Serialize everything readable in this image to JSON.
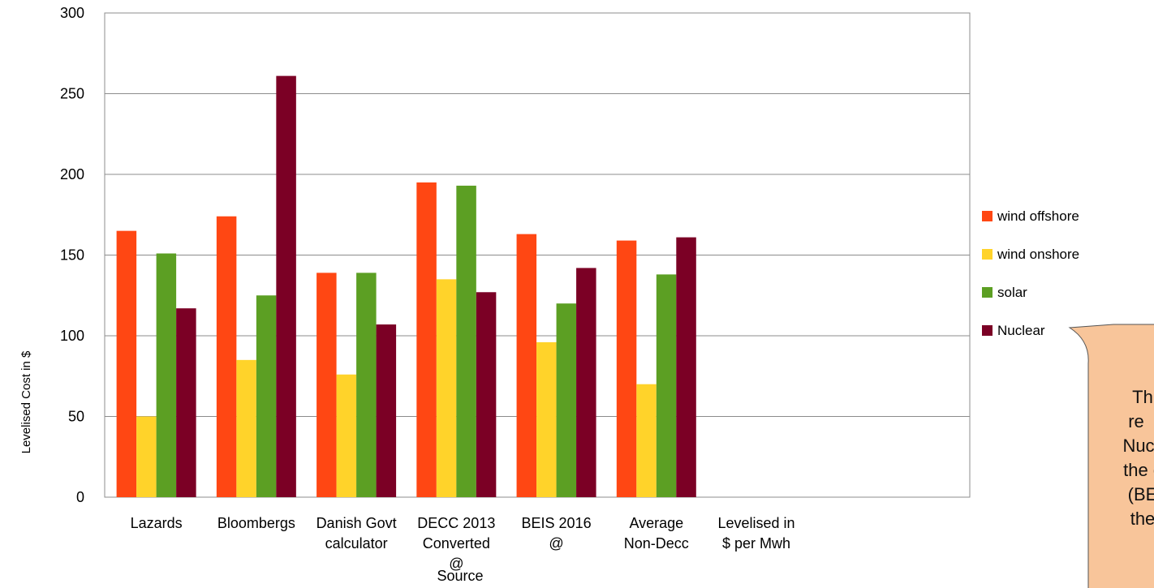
{
  "chart_data": {
    "type": "bar",
    "title": "",
    "ylabel": "Levelised Cost in $",
    "xlabel": "Source",
    "ylim": [
      0,
      300
    ],
    "yticks": [
      0,
      50,
      100,
      150,
      200,
      250,
      300
    ],
    "grid": true,
    "legend_position": "right",
    "categories": [
      [
        "Lazards"
      ],
      [
        "Bloombergs"
      ],
      [
        "Danish Govt",
        "calculator"
      ],
      [
        "DECC  2013",
        "Converted",
        "@"
      ],
      [
        "BEIS 2016",
        "@"
      ],
      [
        "Average",
        "Non-Decc"
      ],
      [
        "Levelised  in",
        "$ per Mwh"
      ]
    ],
    "series": [
      {
        "name": "wind offshore",
        "color": "#FF4713",
        "values": [
          165,
          174,
          139,
          195,
          163,
          159,
          null
        ]
      },
      {
        "name": "wind onshore",
        "color": "#FFD32A",
        "values": [
          50,
          85,
          76,
          135,
          96,
          70,
          null
        ]
      },
      {
        "name": "solar",
        "color": "#5C9F23",
        "values": [
          151,
          125,
          139,
          193,
          120,
          138,
          null
        ]
      },
      {
        "name": "Nuclear",
        "color": "#7B0025",
        "values": [
          117,
          261,
          107,
          127,
          142,
          161,
          null
        ]
      }
    ],
    "callout": {
      "lines": [
        "Th",
        "re",
        "Nuc",
        "the c",
        "(BE",
        "the"
      ],
      "fill": "#F8C59A"
    }
  }
}
